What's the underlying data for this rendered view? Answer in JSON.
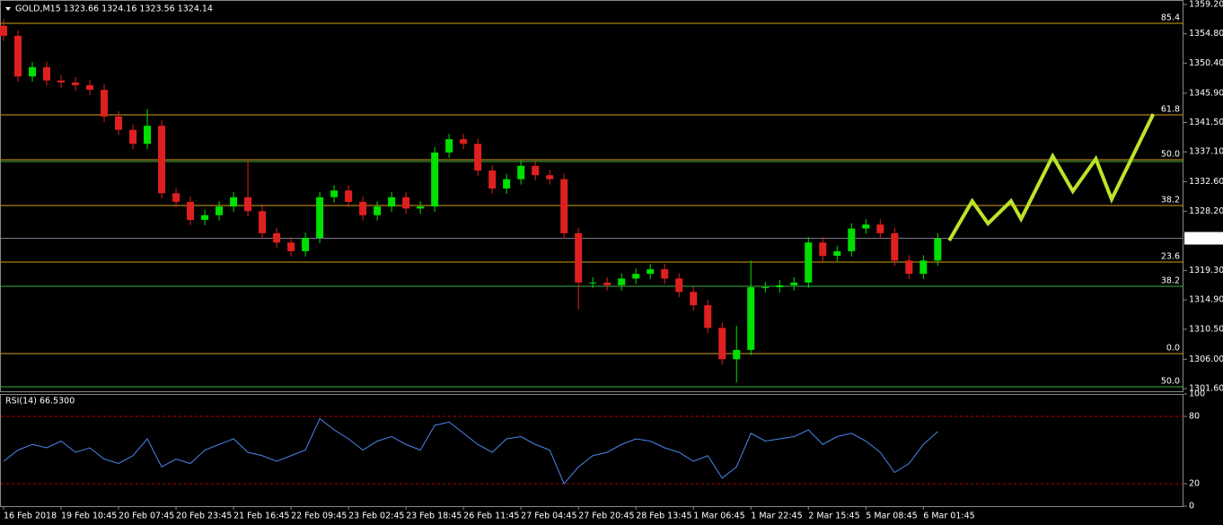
{
  "chart_data": [
    {
      "type": "candlestick",
      "title": "GOLD,M15  1323.66 1324.16 1323.56 1324.14",
      "up_color": "#00e000",
      "down_color": "#e02020",
      "xlim": [
        -0.25,
        82.1
      ],
      "ylim": [
        1301.06,
        1359.87
      ],
      "yticks": [
        {
          "value": 1359.2,
          "label": "1359.20"
        },
        {
          "value": 1354.8,
          "label": "1354.80"
        },
        {
          "value": 1350.4,
          "label": "1350.40"
        },
        {
          "value": 1345.9,
          "label": "1345.90"
        },
        {
          "value": 1341.5,
          "label": "1341.50"
        },
        {
          "value": 1337.1,
          "label": "1337.10"
        },
        {
          "value": 1332.6,
          "label": "1332.60"
        },
        {
          "value": 1328.2,
          "label": "1328.20"
        },
        {
          "value": 1319.3,
          "label": "1319.30"
        },
        {
          "value": 1314.9,
          "label": "1314.90"
        },
        {
          "value": 1310.5,
          "label": "1310.50"
        },
        {
          "value": 1306.0,
          "label": "1306.00"
        },
        {
          "value": 1301.6,
          "label": "1301.60"
        }
      ],
      "xticks": [
        {
          "value": 0,
          "label": "16 Feb 2018"
        },
        {
          "value": 4,
          "label": "19 Feb 10:45"
        },
        {
          "value": 8,
          "label": "20 Feb 07:45"
        },
        {
          "value": 12,
          "label": "20 Feb 23:45"
        },
        {
          "value": 16,
          "label": "21 Feb 16:45"
        },
        {
          "value": 20,
          "label": "22 Feb 09:45"
        },
        {
          "value": 24,
          "label": "23 Feb 02:45"
        },
        {
          "value": 28,
          "label": "23 Feb 18:45"
        },
        {
          "value": 32,
          "label": "26 Feb 11:45"
        },
        {
          "value": 36,
          "label": "27 Feb 04:45"
        },
        {
          "value": 40,
          "label": "27 Feb 20:45"
        },
        {
          "value": 44,
          "label": "28 Feb 13:45"
        },
        {
          "value": 48,
          "label": "1 Mar 06:45"
        },
        {
          "value": 52,
          "label": "1 Mar 22:45"
        },
        {
          "value": 56,
          "label": "2 Mar 15:45"
        },
        {
          "value": 60,
          "label": "5 Mar 08:45"
        },
        {
          "value": 64,
          "label": "6 Mar 01:45"
        }
      ],
      "open": [
        1356.0,
        1354.5,
        1348.4,
        1349.8,
        1347.8,
        1347.5,
        1347.1,
        1346.4,
        1342.4,
        1340.4,
        1338.3,
        1341.0,
        1330.9,
        1329.6,
        1326.9,
        1327.6,
        1328.9,
        1330.3,
        1328.2,
        1324.9,
        1323.5,
        1322.2,
        1324.2,
        1330.3,
        1331.3,
        1329.6,
        1327.6,
        1328.9,
        1330.3,
        1328.6,
        1328.9,
        1337.0,
        1339.0,
        1338.3,
        1334.3,
        1331.6,
        1333.0,
        1335.0,
        1333.6,
        1333.0,
        1324.9,
        1317.5,
        1317.5,
        1317.1,
        1318.1,
        1318.8,
        1319.5,
        1318.1,
        1316.1,
        1314.1,
        1310.7,
        1306.0,
        1307.4,
        1316.8,
        1316.8,
        1317.1,
        1317.5,
        1323.5,
        1321.5,
        1322.2,
        1325.6,
        1326.2,
        1324.9,
        1320.8,
        1318.8,
        1320.8
      ],
      "high": [
        1357.0,
        1355.3,
        1350.6,
        1350.6,
        1348.6,
        1348.3,
        1347.9,
        1347.2,
        1343.2,
        1341.2,
        1343.5,
        1341.8,
        1331.7,
        1330.4,
        1328.4,
        1329.7,
        1331.1,
        1336.0,
        1329.0,
        1325.7,
        1324.3,
        1325.0,
        1331.1,
        1332.1,
        1332.1,
        1330.4,
        1329.7,
        1331.1,
        1331.1,
        1329.7,
        1337.8,
        1339.8,
        1339.8,
        1339.1,
        1335.1,
        1333.8,
        1335.8,
        1335.8,
        1334.4,
        1333.8,
        1325.7,
        1318.3,
        1318.3,
        1318.9,
        1319.6,
        1320.3,
        1320.3,
        1318.9,
        1316.9,
        1314.9,
        1311.5,
        1311.0,
        1320.8,
        1317.6,
        1317.9,
        1318.3,
        1324.3,
        1324.3,
        1323.0,
        1326.4,
        1327.0,
        1327.0,
        1325.7,
        1321.6,
        1321.6,
        1324.9
      ],
      "low": [
        1353.7,
        1347.6,
        1347.6,
        1347.0,
        1346.7,
        1346.3,
        1345.6,
        1341.6,
        1339.6,
        1337.5,
        1337.5,
        1330.1,
        1328.8,
        1326.1,
        1326.1,
        1326.8,
        1328.1,
        1327.4,
        1324.1,
        1322.7,
        1321.4,
        1321.4,
        1323.4,
        1329.5,
        1328.8,
        1326.8,
        1326.8,
        1328.1,
        1327.8,
        1327.8,
        1328.1,
        1336.2,
        1337.5,
        1333.5,
        1330.8,
        1330.8,
        1332.2,
        1332.8,
        1332.2,
        1324.1,
        1313.4,
        1316.7,
        1316.3,
        1316.3,
        1317.3,
        1318.0,
        1317.3,
        1315.3,
        1313.3,
        1309.9,
        1305.2,
        1302.5,
        1306.6,
        1316.0,
        1316.0,
        1316.3,
        1316.7,
        1320.7,
        1320.7,
        1321.4,
        1324.8,
        1324.1,
        1320.0,
        1318.0,
        1318.0,
        1320.0
      ],
      "close": [
        1354.5,
        1348.4,
        1349.8,
        1347.8,
        1347.5,
        1347.1,
        1346.4,
        1342.4,
        1340.4,
        1338.3,
        1341.0,
        1330.9,
        1329.6,
        1326.9,
        1327.6,
        1328.9,
        1330.3,
        1328.2,
        1324.9,
        1323.5,
        1322.2,
        1324.2,
        1330.3,
        1331.3,
        1329.6,
        1327.6,
        1328.9,
        1330.3,
        1328.6,
        1328.9,
        1337.0,
        1339.0,
        1338.3,
        1334.3,
        1331.6,
        1333.0,
        1335.0,
        1333.6,
        1333.0,
        1324.9,
        1317.5,
        1317.5,
        1317.1,
        1318.1,
        1318.8,
        1319.5,
        1318.1,
        1316.1,
        1314.1,
        1310.7,
        1306.0,
        1307.4,
        1316.8,
        1316.8,
        1317.1,
        1317.5,
        1323.5,
        1321.5,
        1322.2,
        1325.6,
        1326.2,
        1324.9,
        1320.8,
        1318.8,
        1320.8,
        1324.1
      ],
      "fib_levels": [
        {
          "label": "85.4",
          "value": 1356.37,
          "color": "#d4a017"
        },
        {
          "label": "61.8",
          "value": 1342.64,
          "color": "#d4a017"
        },
        {
          "label": "50.0",
          "value": 1335.91,
          "color": "#d4a017"
        },
        {
          "label": null,
          "value": 1335.64,
          "color": "#3cb043"
        },
        {
          "label": "38.2",
          "value": 1329.05,
          "color": "#d4a017"
        },
        {
          "label": "23.6",
          "value": 1320.57,
          "color": "#d4a017"
        },
        {
          "label": "38.2",
          "value": 1316.94,
          "color": "#3cb043"
        },
        {
          "label": "0.0",
          "value": 1306.84,
          "color": "#d4a017"
        },
        {
          "label": "50.0",
          "value": 1301.87,
          "color": "#3cb043"
        }
      ],
      "last_price": 1324.14,
      "projection": {
        "color": "#bde32a",
        "x": [
          65.8,
          67.4,
          68.5,
          70.1,
          70.8,
          73.0,
          74.4,
          76.0,
          77.1,
          80.0
        ],
        "values": [
          1323.8,
          1329.72,
          1326.36,
          1329.72,
          1327.03,
          1336.45,
          1331.2,
          1336.05,
          1329.99,
          1342.78
        ]
      }
    },
    {
      "type": "line",
      "title": "RSI(14) 66.5300",
      "color": "#4a86e8",
      "level_color": "#c00000",
      "levels": [
        80,
        20
      ],
      "xlim": [
        -0.25,
        82.1
      ],
      "ylim": [
        0,
        100
      ],
      "yticks": [
        100,
        80,
        20,
        0
      ],
      "values": [
        40,
        50,
        55,
        52,
        58,
        48,
        52,
        42,
        38,
        45,
        60,
        35,
        42,
        38,
        50,
        55,
        60,
        48,
        45,
        40,
        45,
        50,
        78,
        68,
        60,
        50,
        58,
        62,
        55,
        50,
        72,
        75,
        65,
        55,
        48,
        60,
        62,
        55,
        50,
        20,
        35,
        45,
        48,
        55,
        60,
        58,
        52,
        48,
        40,
        45,
        25,
        35,
        65,
        58,
        60,
        62,
        68,
        55,
        62,
        65,
        58,
        48,
        30,
        38,
        55,
        66.53
      ]
    }
  ]
}
